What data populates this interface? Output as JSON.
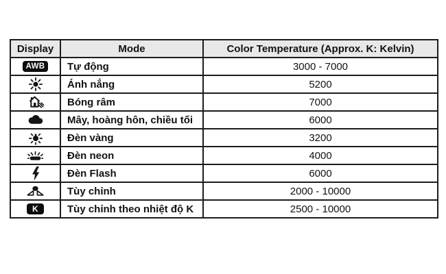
{
  "page": {
    "background": "#ffffff"
  },
  "table": {
    "border_color": "#1b1b1b",
    "header_bg": "#e8e8e6",
    "text_color": "#121212",
    "badge_bg": "#0d0d0d",
    "badge_fg": "#ffffff",
    "headers": [
      {
        "key": "display",
        "label": "Display"
      },
      {
        "key": "mode",
        "label": "Mode"
      },
      {
        "key": "temp",
        "label": "Color Temperature (Approx. K: Kelvin)"
      }
    ],
    "rows": [
      {
        "icon": "awb-icon",
        "icon_text": "AWB",
        "mode": "Tự động",
        "temp": "3000 - 7000"
      },
      {
        "icon": "sun-icon",
        "icon_text": "",
        "mode": "Ánh nắng",
        "temp": "5200"
      },
      {
        "icon": "shade-icon",
        "icon_text": "",
        "mode": "Bóng râm",
        "temp": "7000"
      },
      {
        "icon": "cloud-icon",
        "icon_text": "",
        "mode": "Mây, hoàng hôn, chiều tối",
        "temp": "6000"
      },
      {
        "icon": "tungsten-icon",
        "icon_text": "",
        "mode": "Đèn vàng",
        "temp": "3200"
      },
      {
        "icon": "fluorescent-icon",
        "icon_text": "",
        "mode": "Đèn neon",
        "temp": "4000"
      },
      {
        "icon": "flash-icon",
        "icon_text": "",
        "mode": "Đèn Flash",
        "temp": "6000"
      },
      {
        "icon": "custom-icon",
        "icon_text": "",
        "mode": "Tùy chỉnh",
        "temp": "2000 - 10000"
      },
      {
        "icon": "kelvin-icon",
        "icon_text": "K",
        "mode": "Tùy chỉnh theo nhiệt độ K",
        "temp": "2500 - 10000"
      }
    ]
  }
}
